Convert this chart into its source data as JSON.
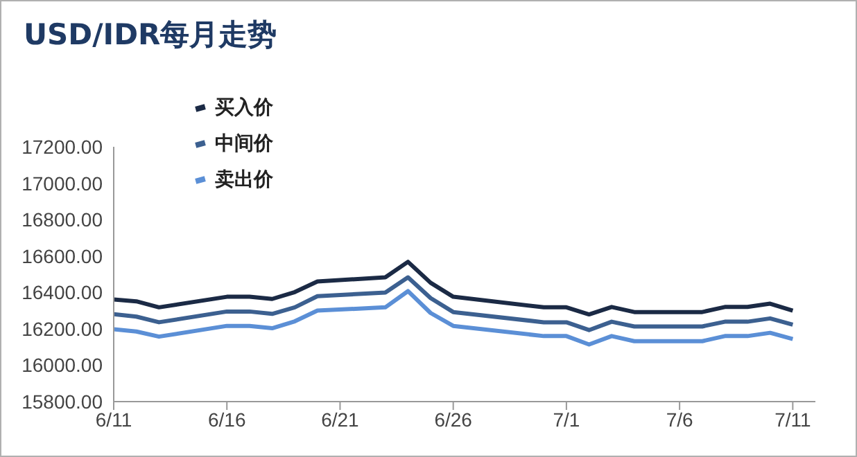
{
  "chart_data": {
    "type": "line",
    "title": "USD/IDR每月走势",
    "x": [
      "--06-11",
      "--06-12",
      "--06-13",
      "--06-16",
      "--06-17",
      "--06-18",
      "--06-19",
      "--06-20",
      "--06-23",
      "--06-24",
      "--06-25",
      "--06-26",
      "--06-30",
      "--07-01",
      "--07-02",
      "--07-03",
      "--07-04",
      "--07-07",
      "--07-08",
      "--07-09",
      "--07-10",
      "--07-11"
    ],
    "series": [
      {
        "name": "买入价",
        "color": "#1b2a45",
        "values": [
          16361,
          16351,
          16318,
          16376,
          16376,
          16364,
          16402,
          16460,
          16483,
          16568,
          16453,
          16376,
          16318,
          16318,
          16279,
          16320,
          16292,
          16292,
          16320,
          16320,
          16338,
          16300
        ]
      },
      {
        "name": "中间价",
        "color": "#3c6090",
        "values": [
          16280,
          16267,
          16236,
          16295,
          16295,
          16282,
          16318,
          16379,
          16399,
          16483,
          16369,
          16292,
          16236,
          16236,
          16193,
          16239,
          16213,
          16213,
          16239,
          16239,
          16257,
          16223
        ]
      },
      {
        "name": "卖出价",
        "color": "#5b8fd6",
        "values": [
          16198,
          16185,
          16157,
          16216,
          16216,
          16203,
          16241,
          16300,
          16318,
          16407,
          16287,
          16216,
          16160,
          16160,
          16114,
          16160,
          16132,
          16132,
          16160,
          16160,
          16178,
          16144
        ]
      }
    ],
    "xlim": [
      "--06-11",
      "--07-12"
    ],
    "xticks": [
      {
        "value": "--06-11",
        "label": "6/11"
      },
      {
        "value": "--06-16",
        "label": "6/16"
      },
      {
        "value": "--06-21",
        "label": "6/21"
      },
      {
        "value": "--06-26",
        "label": "6/26"
      },
      {
        "value": "--07-01",
        "label": "7/1"
      },
      {
        "value": "--07-06",
        "label": "7/6"
      },
      {
        "value": "--07-11",
        "label": "7/11"
      }
    ],
    "ylim": [
      15800,
      17200
    ],
    "yticks": [
      {
        "value": 15800,
        "label": "15800.00"
      },
      {
        "value": 16000,
        "label": "16000.00"
      },
      {
        "value": 16200,
        "label": "16200.00"
      },
      {
        "value": 16400,
        "label": "16400.00"
      },
      {
        "value": 16600,
        "label": "16600.00"
      },
      {
        "value": 16800,
        "label": "16800.00"
      },
      {
        "value": 17000,
        "label": "17000.00"
      },
      {
        "value": 17200,
        "label": "17200.00"
      }
    ],
    "grid": false,
    "legend": "top left"
  }
}
